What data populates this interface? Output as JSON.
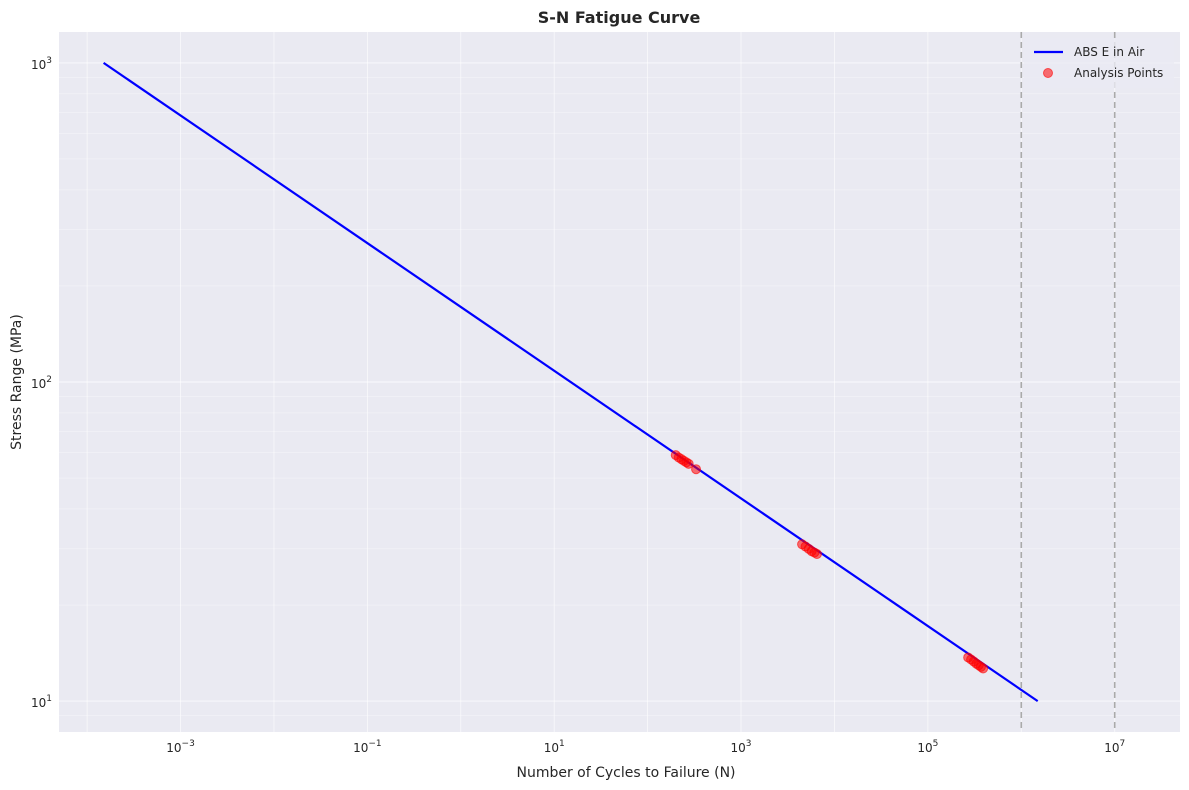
{
  "chart_data": {
    "type": "scatter",
    "title": "S-N Fatigue Curve",
    "xlabel": "Number of Cycles to Failure (N)",
    "ylabel": "Stress Range (MPa)",
    "x_scale": "log",
    "y_scale": "log",
    "xlim": [
      5e-05,
      50000000
    ],
    "ylim": [
      8,
      1250
    ],
    "x_tick_labels": [
      {
        "base": "10",
        "exp": "−3",
        "value": 0.001
      },
      {
        "base": "10",
        "exp": "−1",
        "value": 0.1
      },
      {
        "base": "10",
        "exp": "1",
        "value": 10
      },
      {
        "base": "10",
        "exp": "3",
        "value": 1000
      },
      {
        "base": "10",
        "exp": "5",
        "value": 100000
      },
      {
        "base": "10",
        "exp": "7",
        "value": 10000000
      }
    ],
    "y_tick_labels": [
      {
        "base": "10",
        "exp": "1",
        "value": 10
      },
      {
        "base": "10",
        "exp": "2",
        "value": 100
      },
      {
        "base": "10",
        "exp": "3",
        "value": 1000
      }
    ],
    "grid": true,
    "legend_position": "top-right",
    "series": [
      {
        "name": "ABS E in Air",
        "kind": "line",
        "color": "#0000ff",
        "x": [
          0.00015,
          1500000
        ],
        "y": [
          1000,
          10
        ]
      },
      {
        "name": "Analysis Points",
        "kind": "scatter",
        "color": "#ff0000",
        "x": [
          200,
          215,
          230,
          245,
          260,
          275,
          330,
          4500,
          4900,
          5300,
          5700,
          6100,
          6500,
          270000,
          290000,
          310000,
          330000,
          350000,
          370000,
          390000
        ],
        "y": [
          59.0,
          58.0,
          57.3,
          56.6,
          56.0,
          55.4,
          53.3,
          31.0,
          30.5,
          30.0,
          29.5,
          29.2,
          28.9,
          13.7,
          13.5,
          13.3,
          13.1,
          12.95,
          12.8,
          12.65
        ]
      }
    ],
    "reference_lines": [
      {
        "axis": "x",
        "value": 1000000,
        "color": "#aaaaaa",
        "style": "dashed"
      },
      {
        "axis": "x",
        "value": 10000000,
        "color": "#aaaaaa",
        "style": "dashed"
      }
    ]
  }
}
